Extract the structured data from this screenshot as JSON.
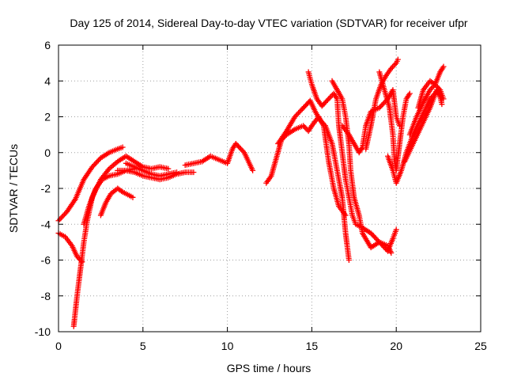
{
  "chart_data": {
    "type": "scatter",
    "title": "Day 125 of 2014, Sidereal Day-to-day VTEC variation (SDTVAR) for receiver ufpr",
    "xlabel": "GPS time / hours",
    "ylabel": "SDTVAR / TECUs",
    "xlim": [
      0,
      25
    ],
    "ylim": [
      -10,
      6
    ],
    "xticks": [
      0,
      5,
      10,
      15,
      20,
      25
    ],
    "yticks": [
      -10,
      -8,
      -6,
      -4,
      -2,
      0,
      2,
      4,
      6
    ],
    "xtick_labels": [
      "0",
      "5",
      "10",
      "15",
      "20",
      "25"
    ],
    "ytick_labels": [
      "-10",
      "-8",
      "-6",
      "-4",
      "-2",
      "0",
      "2",
      "4",
      "6"
    ],
    "grid": true,
    "legend": false,
    "marker": "+",
    "series_color": "#ff0000",
    "series": [
      {
        "points": [
          [
            0.0,
            -3.8
          ],
          [
            0.5,
            -3.3
          ],
          [
            1.0,
            -2.6
          ],
          [
            1.5,
            -1.5
          ],
          [
            2.0,
            -0.8
          ],
          [
            2.5,
            -0.3
          ],
          [
            3.0,
            0.0
          ],
          [
            3.5,
            0.2
          ],
          [
            3.8,
            0.3
          ]
        ]
      },
      {
        "points": [
          [
            0.0,
            -4.5
          ],
          [
            0.4,
            -4.7
          ],
          [
            0.8,
            -5.2
          ],
          [
            1.1,
            -5.8
          ],
          [
            1.4,
            -6.1
          ]
        ]
      },
      {
        "points": [
          [
            0.9,
            -9.7
          ],
          [
            1.1,
            -8.0
          ],
          [
            1.3,
            -6.5
          ],
          [
            1.5,
            -5.0
          ],
          [
            1.7,
            -3.8
          ],
          [
            2.0,
            -2.5
          ],
          [
            2.5,
            -1.5
          ],
          [
            3.0,
            -0.9
          ],
          [
            3.5,
            -0.5
          ],
          [
            4.0,
            -0.2
          ],
          [
            4.5,
            -0.5
          ],
          [
            5.0,
            -0.8
          ],
          [
            5.5,
            -0.9
          ],
          [
            6.0,
            -0.8
          ],
          [
            6.5,
            -0.9
          ]
        ]
      },
      {
        "points": [
          [
            1.5,
            -4.0
          ],
          [
            1.8,
            -3.0
          ],
          [
            2.2,
            -2.0
          ],
          [
            2.6,
            -1.5
          ],
          [
            3.0,
            -1.3
          ],
          [
            3.5,
            -1.2
          ],
          [
            4.0,
            -1.0
          ],
          [
            4.5,
            -0.9
          ]
        ]
      },
      {
        "points": [
          [
            2.5,
            -3.5
          ],
          [
            2.8,
            -2.8
          ],
          [
            3.1,
            -2.3
          ],
          [
            3.5,
            -2.0
          ],
          [
            3.8,
            -2.2
          ],
          [
            4.2,
            -2.4
          ],
          [
            4.4,
            -2.5
          ]
        ]
      },
      {
        "points": [
          [
            3.5,
            -1.0
          ],
          [
            4.0,
            -1.0
          ],
          [
            4.5,
            -1.1
          ],
          [
            5.0,
            -1.3
          ],
          [
            5.5,
            -1.4
          ],
          [
            6.0,
            -1.5
          ],
          [
            6.5,
            -1.4
          ],
          [
            7.0,
            -1.2
          ],
          [
            7.5,
            -1.1
          ],
          [
            8.0,
            -1.1
          ]
        ]
      },
      {
        "points": [
          [
            4.0,
            -0.6
          ],
          [
            4.5,
            -0.8
          ],
          [
            5.0,
            -1.0
          ],
          [
            5.5,
            -1.2
          ],
          [
            6.0,
            -1.3
          ],
          [
            6.5,
            -1.2
          ],
          [
            7.0,
            -1.1
          ]
        ]
      },
      {
        "points": [
          [
            7.5,
            -0.7
          ],
          [
            8.0,
            -0.6
          ],
          [
            8.5,
            -0.5
          ],
          [
            9.0,
            -0.2
          ],
          [
            9.5,
            -0.4
          ],
          [
            10.0,
            -0.6
          ],
          [
            10.3,
            0.2
          ],
          [
            10.5,
            0.5
          ],
          [
            11.0,
            0.0
          ],
          [
            11.5,
            -1.0
          ]
        ]
      },
      {
        "points": [
          [
            12.3,
            -1.7
          ],
          [
            12.6,
            -1.3
          ],
          [
            12.9,
            -0.3
          ],
          [
            13.2,
            0.7
          ],
          [
            13.5,
            1.0
          ],
          [
            14.0,
            1.3
          ],
          [
            14.5,
            1.5
          ],
          [
            14.8,
            1.2
          ],
          [
            15.0,
            1.5
          ],
          [
            15.4,
            2.0
          ],
          [
            15.7,
            1.5
          ],
          [
            16.0,
            -0.5
          ],
          [
            16.3,
            -2.0
          ],
          [
            16.6,
            -3.0
          ],
          [
            17.0,
            -3.5
          ]
        ]
      },
      {
        "points": [
          [
            13.0,
            0.5
          ],
          [
            13.5,
            1.2
          ],
          [
            14.0,
            2.0
          ],
          [
            14.5,
            2.5
          ],
          [
            14.9,
            2.9
          ],
          [
            15.2,
            2.3
          ],
          [
            15.5,
            1.8
          ],
          [
            15.8,
            1.5
          ],
          [
            16.2,
            0.5
          ],
          [
            16.5,
            -1.0
          ],
          [
            16.8,
            -2.5
          ],
          [
            17.0,
            -4.5
          ],
          [
            17.2,
            -6.0
          ]
        ]
      },
      {
        "points": [
          [
            14.8,
            4.5
          ],
          [
            15.0,
            3.8
          ],
          [
            15.3,
            3.0
          ],
          [
            15.6,
            2.6
          ],
          [
            16.0,
            3.0
          ],
          [
            16.3,
            3.3
          ],
          [
            16.5,
            3.0
          ],
          [
            16.6,
            1.5
          ],
          [
            16.8,
            0.0
          ],
          [
            17.0,
            -1.5
          ],
          [
            17.2,
            -2.5
          ],
          [
            17.4,
            -3.5
          ],
          [
            17.6,
            -4.0
          ],
          [
            18.0,
            -4.2
          ],
          [
            18.5,
            -4.5
          ],
          [
            19.0,
            -5.0
          ],
          [
            19.5,
            -5.5
          ],
          [
            19.8,
            -4.8
          ],
          [
            20.0,
            -4.3
          ]
        ]
      },
      {
        "points": [
          [
            16.2,
            4.0
          ],
          [
            16.5,
            3.5
          ],
          [
            16.8,
            3.0
          ],
          [
            17.0,
            2.0
          ],
          [
            17.2,
            0.5
          ],
          [
            17.3,
            -1.0
          ],
          [
            17.5,
            -2.5
          ],
          [
            17.8,
            -3.5
          ],
          [
            18.0,
            -4.5
          ],
          [
            18.5,
            -5.3
          ],
          [
            19.0,
            -5.0
          ],
          [
            19.5,
            -5.2
          ],
          [
            19.7,
            -5.6
          ]
        ]
      },
      {
        "points": [
          [
            16.8,
            1.5
          ],
          [
            17.2,
            1.0
          ],
          [
            17.5,
            0.5
          ],
          [
            17.8,
            0.0
          ],
          [
            18.0,
            0.3
          ],
          [
            18.2,
            1.5
          ],
          [
            18.5,
            2.3
          ],
          [
            19.0,
            2.5
          ],
          [
            19.5,
            3.0
          ],
          [
            19.8,
            3.5
          ],
          [
            20.0,
            2.0
          ],
          [
            20.2,
            1.5
          ]
        ]
      },
      {
        "points": [
          [
            18.2,
            0.2
          ],
          [
            18.5,
            1.5
          ],
          [
            18.8,
            3.0
          ],
          [
            19.1,
            3.8
          ],
          [
            19.4,
            4.3
          ],
          [
            19.7,
            4.7
          ],
          [
            20.0,
            5.0
          ],
          [
            20.1,
            5.2
          ]
        ]
      },
      {
        "points": [
          [
            19.0,
            4.5
          ],
          [
            19.3,
            3.5
          ],
          [
            19.6,
            2.5
          ],
          [
            19.8,
            1.0
          ],
          [
            19.9,
            -0.5
          ],
          [
            20.0,
            -1.0
          ],
          [
            20.2,
            0.5
          ],
          [
            20.4,
            2.0
          ],
          [
            20.6,
            3.0
          ],
          [
            20.8,
            3.3
          ]
        ]
      },
      {
        "points": [
          [
            19.5,
            -0.2
          ],
          [
            19.8,
            -1.0
          ],
          [
            20.0,
            -1.7
          ],
          [
            20.3,
            -1.0
          ],
          [
            20.6,
            0.0
          ],
          [
            21.0,
            1.0
          ],
          [
            21.5,
            2.0
          ],
          [
            22.0,
            3.0
          ],
          [
            22.5,
            3.5
          ],
          [
            22.7,
            2.7
          ]
        ]
      },
      {
        "points": [
          [
            20.5,
            -0.5
          ],
          [
            21.0,
            0.5
          ],
          [
            21.5,
            1.5
          ],
          [
            22.0,
            2.5
          ],
          [
            22.4,
            3.5
          ],
          [
            22.7,
            3.0
          ]
        ]
      },
      {
        "points": [
          [
            20.8,
            1.0
          ],
          [
            21.2,
            2.0
          ],
          [
            21.6,
            2.8
          ],
          [
            22.0,
            3.5
          ],
          [
            22.3,
            3.8
          ],
          [
            22.6,
            4.5
          ],
          [
            22.8,
            4.8
          ]
        ]
      },
      {
        "points": [
          [
            21.3,
            2.5
          ],
          [
            21.6,
            3.5
          ],
          [
            22.0,
            4.0
          ],
          [
            22.3,
            3.8
          ],
          [
            22.6,
            3.5
          ],
          [
            22.8,
            3.0
          ]
        ]
      }
    ]
  }
}
